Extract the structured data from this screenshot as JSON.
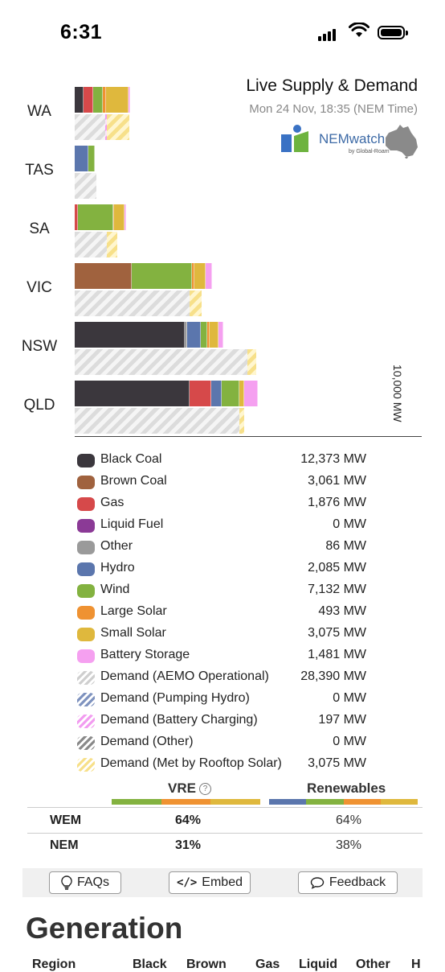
{
  "status_bar": {
    "time": "6:31"
  },
  "header": {
    "title": "Live Supply & Demand",
    "subtitle": "Mon 24 Nov, 18:35 (NEM Time)",
    "brand_name": "NEMwatch",
    "brand_by": "by Global-Roam"
  },
  "chart_data": {
    "type": "bar",
    "orientation": "horizontal-stacked",
    "categories": [
      "WA",
      "TAS",
      "SA",
      "VIC",
      "NSW",
      "QLD"
    ],
    "scale_label": "10,000 MW",
    "scale_mw": 10000,
    "colors": {
      "black_coal": "#3b373d",
      "brown_coal": "#a0623e",
      "gas": "#d6494a",
      "liquid_fuel": "#8b3a96",
      "other": "#9a9a9a",
      "hydro": "#5b76ad",
      "wind": "#83b240",
      "large_solar": "#ef9232",
      "small_solar": "#dfb83d",
      "battery": "#f5a0f0"
    },
    "regions": [
      {
        "name": "WA",
        "supply": [
          [
            "black_coal",
            250
          ],
          [
            "gas",
            280
          ],
          [
            "wind",
            270
          ],
          [
            "large_solar",
            100
          ],
          [
            "small_solar",
            650
          ],
          [
            "battery",
            50
          ]
        ],
        "demand": [
          [
            "demand_operational",
            880
          ],
          [
            "demand_battery_charging",
            50
          ],
          [
            "demand_rooftop",
            650
          ]
        ]
      },
      {
        "name": "TAS",
        "supply": [
          [
            "hydro",
            400
          ],
          [
            "wind",
            190
          ]
        ],
        "demand": [
          [
            "demand_operational",
            630
          ]
        ]
      },
      {
        "name": "SA",
        "supply": [
          [
            "gas",
            100
          ],
          [
            "wind",
            1000
          ],
          [
            "large_solar",
            40
          ],
          [
            "small_solar",
            300
          ],
          [
            "battery",
            40
          ]
        ],
        "demand": [
          [
            "demand_operational",
            920
          ],
          [
            "demand_rooftop",
            300
          ]
        ]
      },
      {
        "name": "VIC",
        "supply": [
          [
            "brown_coal",
            1650
          ],
          [
            "wind",
            1730
          ],
          [
            "large_solar",
            60
          ],
          [
            "small_solar",
            340
          ],
          [
            "battery",
            190
          ]
        ],
        "demand": [
          [
            "demand_operational",
            3320
          ],
          [
            "demand_rooftop",
            340
          ]
        ]
      },
      {
        "name": "NSW",
        "supply": [
          [
            "black_coal",
            3180
          ],
          [
            "other",
            50
          ],
          [
            "hydro",
            400
          ],
          [
            "wind",
            200
          ],
          [
            "large_solar",
            60
          ],
          [
            "small_solar",
            250
          ],
          [
            "battery",
            140
          ]
        ],
        "demand": [
          [
            "demand_operational",
            4970
          ],
          [
            "demand_rooftop",
            250
          ]
        ]
      },
      {
        "name": "QLD",
        "supply": [
          [
            "black_coal",
            3300
          ],
          [
            "gas",
            640
          ],
          [
            "hydro",
            300
          ],
          [
            "wind",
            510
          ],
          [
            "small_solar",
            140
          ],
          [
            "battery",
            400
          ]
        ],
        "demand": [
          [
            "demand_operational",
            4750
          ],
          [
            "demand_rooftop",
            140
          ]
        ]
      }
    ]
  },
  "legend": [
    {
      "name": "black-coal",
      "label": "Black Coal",
      "value": "12,373 MW",
      "color": "#3b373d",
      "hatch": false
    },
    {
      "name": "brown-coal",
      "label": "Brown Coal",
      "value": "3,061 MW",
      "color": "#a0623e",
      "hatch": false
    },
    {
      "name": "gas",
      "label": "Gas",
      "value": "1,876 MW",
      "color": "#d6494a",
      "hatch": false
    },
    {
      "name": "liquid-fuel",
      "label": "Liquid Fuel",
      "value": "0 MW",
      "color": "#8b3a96",
      "hatch": false
    },
    {
      "name": "other",
      "label": "Other",
      "value": "86 MW",
      "color": "#9a9a9a",
      "hatch": false
    },
    {
      "name": "hydro",
      "label": "Hydro",
      "value": "2,085 MW",
      "color": "#5b76ad",
      "hatch": false
    },
    {
      "name": "wind",
      "label": "Wind",
      "value": "7,132 MW",
      "color": "#83b240",
      "hatch": false
    },
    {
      "name": "large-solar",
      "label": "Large Solar",
      "value": "493 MW",
      "color": "#ef9232",
      "hatch": false
    },
    {
      "name": "small-solar",
      "label": "Small Solar",
      "value": "3,075 MW",
      "color": "#dfb83d",
      "hatch": false
    },
    {
      "name": "battery-storage",
      "label": "Battery Storage",
      "value": "1,481 MW",
      "color": "#f5a0f0",
      "hatch": false
    },
    {
      "name": "demand-operational",
      "label": "Demand (AEMO Operational)",
      "value": "28,390 MW",
      "color": "#cfcfcf",
      "hatch": true
    },
    {
      "name": "demand-pumping-hydro",
      "label": "Demand (Pumping Hydro)",
      "value": "0 MW",
      "color": "#7f93bf",
      "hatch": true
    },
    {
      "name": "demand-battery-charging",
      "label": "Demand (Battery Charging)",
      "value": "197 MW",
      "color": "#f29cf0",
      "hatch": true
    },
    {
      "name": "demand-other",
      "label": "Demand (Other)",
      "value": "0 MW",
      "color": "#8a8a8a",
      "hatch": true
    },
    {
      "name": "demand-rooftop-solar",
      "label": "Demand (Met by Rooftop Solar)",
      "value": "3,075 MW",
      "color": "#f7e08a",
      "hatch": true
    }
  ],
  "share": {
    "vre_label": "VRE",
    "renewables_label": "Renewables",
    "rows": [
      {
        "name": "WEM",
        "vre": "64%",
        "renewables": "64%"
      },
      {
        "name": "NEM",
        "vre": "31%",
        "renewables": "38%"
      }
    ]
  },
  "toolbar": {
    "faqs": "FAQs",
    "embed": "Embed",
    "feedback": "Feedback"
  },
  "generation": {
    "title": "Generation",
    "columns": [
      "Region",
      "Black",
      "Brown",
      "Gas",
      "Liquid",
      "Other",
      "H"
    ]
  }
}
